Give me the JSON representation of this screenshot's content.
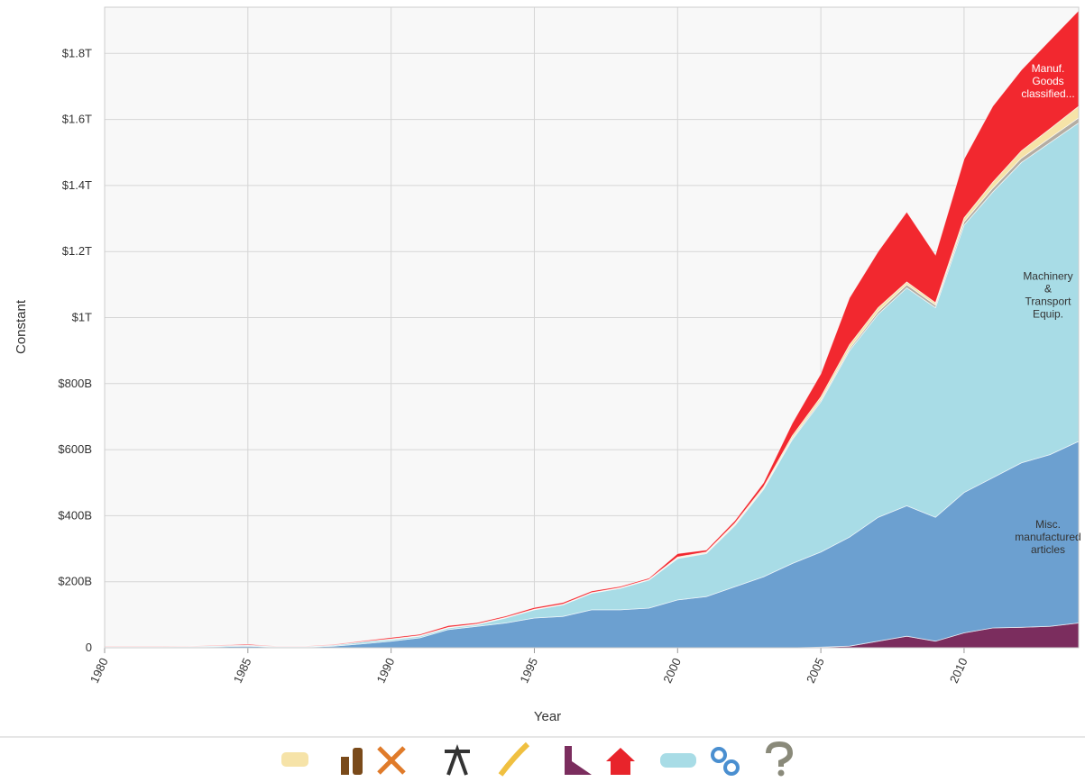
{
  "chart_data": {
    "type": "stacked_area",
    "x_label": "Year",
    "y_label": "Constant",
    "x": [
      1980,
      1981,
      1982,
      1983,
      1984,
      1985,
      1986,
      1987,
      1988,
      1989,
      1990,
      1991,
      1992,
      1993,
      1994,
      1995,
      1996,
      1997,
      1998,
      1999,
      2000,
      2001,
      2002,
      2003,
      2004,
      2005,
      2006,
      2007,
      2008,
      2009,
      2010,
      2011,
      2012,
      2013,
      2014
    ],
    "xlim": [
      1980,
      2014
    ],
    "xticks": [
      1980,
      1985,
      1990,
      1995,
      2000,
      2005,
      2010
    ],
    "ylim": [
      0,
      1940
    ],
    "yticks": [
      0,
      {
        "value": 200,
        "label": "$200B"
      },
      {
        "value": 400,
        "label": "$400B"
      },
      {
        "value": 600,
        "label": "$600B"
      },
      {
        "value": 800,
        "label": "$800B"
      },
      {
        "value": 1000,
        "label": "$1T"
      },
      {
        "value": 1200,
        "label": "$1.2T"
      },
      {
        "value": 1400,
        "label": "$1.4T"
      },
      {
        "value": 1600,
        "label": "$1.6T"
      },
      {
        "value": 1800,
        "label": "$1.8T"
      }
    ],
    "grid": true,
    "series": [
      {
        "color": "#7b2d5e",
        "values": [
          0,
          0,
          0,
          0,
          0,
          0,
          0,
          0,
          0,
          0,
          0,
          0,
          0,
          0,
          0,
          0,
          0,
          0,
          0,
          0,
          0,
          0,
          0,
          0,
          0,
          2,
          5,
          20,
          35,
          20,
          45,
          60,
          62,
          65,
          75
        ]
      },
      {
        "name": "Misc. manufactured articles",
        "color": "#6ca0d0",
        "values": [
          2,
          2,
          2,
          2,
          3,
          5,
          2,
          2,
          5,
          12,
          20,
          30,
          55,
          65,
          75,
          90,
          95,
          115,
          115,
          120,
          145,
          155,
          185,
          215,
          255,
          288,
          330,
          375,
          395,
          375,
          425,
          455,
          498,
          520,
          550
        ]
      },
      {
        "name": "Machinery & Transport Equip.",
        "color": "#a8dce6",
        "values": [
          1,
          1,
          1,
          2,
          3,
          3,
          2,
          2,
          3,
          6,
          5,
          5,
          5,
          5,
          15,
          25,
          35,
          50,
          65,
          85,
          125,
          130,
          185,
          265,
          375,
          455,
          565,
          615,
          660,
          635,
          810,
          865,
          910,
          945,
          965
        ]
      },
      {
        "color": "#b4ada3",
        "values": [
          0,
          0,
          0,
          0,
          0,
          0,
          0,
          0,
          0,
          0,
          1,
          1,
          1,
          1,
          1,
          1,
          1,
          1,
          1,
          1,
          2,
          2,
          3,
          3,
          4,
          5,
          6,
          8,
          10,
          8,
          10,
          12,
          13,
          14,
          15
        ]
      },
      {
        "color": "#f6e3a8",
        "values": [
          0,
          0,
          0,
          0,
          0,
          0,
          0,
          0,
          0,
          0,
          1,
          1,
          1,
          1,
          1,
          1,
          1,
          1,
          1,
          1,
          3,
          3,
          4,
          5,
          8,
          10,
          12,
          12,
          8,
          7,
          12,
          18,
          22,
          28,
          35
        ]
      },
      {
        "name": "Manuf. Goods classified...",
        "color": "#f2282f",
        "values": [
          1,
          1,
          1,
          1,
          2,
          3,
          1,
          1,
          2,
          3,
          4,
          4,
          5,
          4,
          4,
          5,
          5,
          5,
          4,
          4,
          10,
          6,
          8,
          12,
          38,
          70,
          142,
          170,
          212,
          145,
          178,
          230,
          245,
          268,
          290
        ]
      }
    ]
  }
}
